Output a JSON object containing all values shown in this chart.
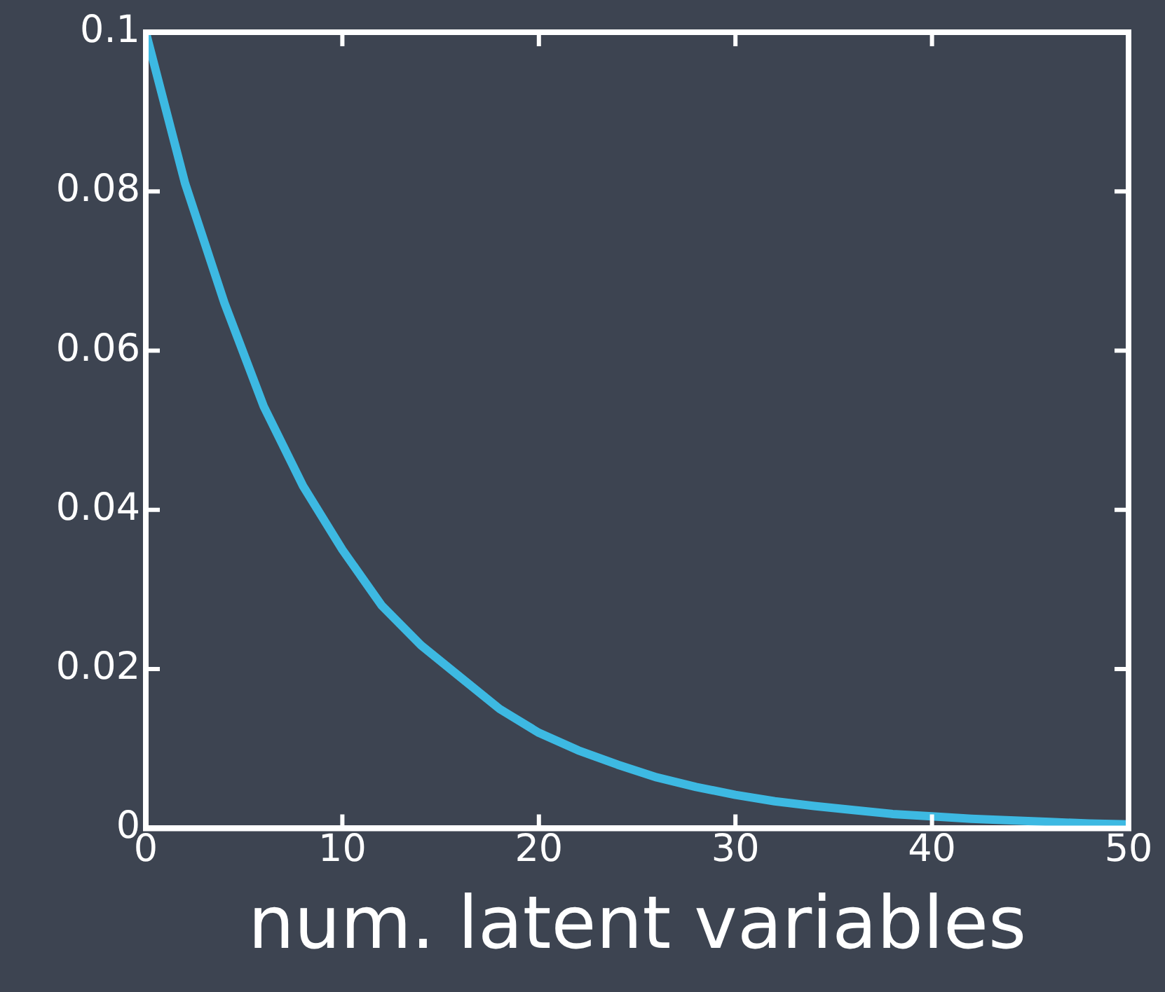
{
  "chart_data": {
    "type": "line",
    "xlabel": "num. latent variables",
    "x": [
      0,
      2,
      4,
      6,
      8,
      10,
      12,
      14,
      16,
      18,
      20,
      22,
      24,
      26,
      28,
      30,
      32,
      34,
      36,
      38,
      40,
      42,
      44,
      46,
      48,
      50
    ],
    "series": [
      {
        "color": "#3db9e2",
        "values": [
          0.1,
          0.081,
          0.066,
          0.053,
          0.043,
          0.035,
          0.028,
          0.023,
          0.019,
          0.015,
          0.012,
          0.0098,
          0.008,
          0.0064,
          0.0052,
          0.0042,
          0.0034,
          0.0028,
          0.0023,
          0.0018,
          0.0015,
          0.0012,
          0.001,
          0.0008,
          0.0006,
          0.0005
        ]
      }
    ],
    "xlim": [
      0,
      50
    ],
    "xticks": [
      0,
      10,
      20,
      30,
      40,
      50
    ],
    "ylim": [
      0,
      0.1
    ],
    "yticks": [
      0,
      0.02,
      0.04,
      0.06,
      0.08,
      0.1
    ],
    "grid": false,
    "legend": false,
    "marker": "none",
    "line_style": "solid"
  }
}
